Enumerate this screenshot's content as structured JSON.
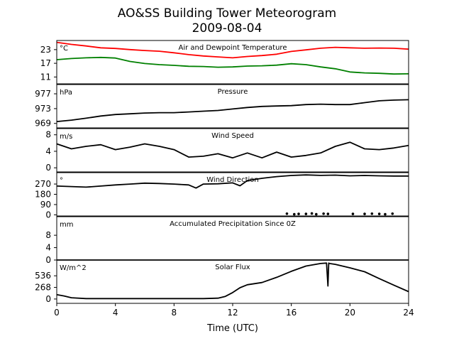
{
  "figure": {
    "title_line1": "AO&SS Building Tower Meteorogram",
    "title_line2": "2009-08-04",
    "xlabel": "Time (UTC)",
    "x_ticks": [
      0,
      4,
      8,
      12,
      16,
      20,
      24
    ],
    "xlim": [
      0,
      24
    ]
  },
  "chart_data": [
    {
      "type": "line",
      "title": "Air and Dewpoint Temperature",
      "unit": "°C",
      "ylim": [
        8,
        27
      ],
      "yticks": [
        11,
        17,
        23
      ],
      "series": [
        {
          "color": "#ff0000",
          "x": [
            0,
            1,
            2,
            3,
            4,
            5,
            6,
            7,
            8,
            9,
            10,
            11,
            12,
            13,
            14,
            15,
            16,
            17,
            18,
            19,
            20,
            21,
            22,
            23,
            24
          ],
          "y": [
            26.2,
            25.3,
            24.6,
            23.8,
            23.5,
            23.0,
            22.6,
            22.3,
            21.6,
            20.8,
            20.2,
            19.8,
            19.4,
            20.0,
            20.4,
            21.0,
            22.2,
            22.9,
            23.6,
            24.0,
            23.8,
            23.6,
            23.7,
            23.6,
            23.2
          ]
        },
        {
          "color": "#008000",
          "x": [
            0,
            1,
            2,
            3,
            4,
            5,
            6,
            7,
            8,
            9,
            10,
            11,
            12,
            13,
            14,
            15,
            16,
            17,
            18,
            19,
            20,
            21,
            22,
            23,
            24
          ],
          "y": [
            18.6,
            19.1,
            19.4,
            19.6,
            19.3,
            17.8,
            16.9,
            16.4,
            16.1,
            15.7,
            15.6,
            15.3,
            15.4,
            15.8,
            15.9,
            16.2,
            16.8,
            16.4,
            15.4,
            14.6,
            13.2,
            12.8,
            12.6,
            12.3,
            12.4
          ]
        }
      ]
    },
    {
      "type": "line",
      "title": "Pressure",
      "unit": "hPa",
      "ylim": [
        967.8,
        979.5
      ],
      "yticks": [
        969,
        973,
        977
      ],
      "series": [
        {
          "color": "#000000",
          "x": [
            0,
            1,
            2,
            3,
            4,
            5,
            6,
            7,
            8,
            9,
            10,
            11,
            12,
            13,
            14,
            15,
            16,
            17,
            18,
            19,
            20,
            21,
            22,
            23,
            24
          ],
          "y": [
            969.5,
            969.9,
            970.4,
            971.0,
            971.4,
            971.6,
            971.8,
            971.9,
            971.9,
            972.1,
            972.3,
            972.5,
            972.9,
            973.3,
            973.6,
            973.7,
            973.8,
            974.1,
            974.2,
            974.1,
            974.1,
            974.6,
            975.1,
            975.3,
            975.4
          ]
        }
      ]
    },
    {
      "type": "line",
      "title": "Wind Speed",
      "unit": "m/s",
      "ylim": [
        -1,
        9.5
      ],
      "yticks": [
        0,
        4,
        8
      ],
      "series": [
        {
          "color": "#000000",
          "x": [
            0,
            1,
            2,
            3,
            4,
            5,
            6,
            7,
            8,
            9,
            10,
            11,
            12,
            13,
            14,
            15,
            16,
            17,
            18,
            19,
            20,
            21,
            22,
            23,
            24
          ],
          "y": [
            5.8,
            4.6,
            5.2,
            5.6,
            4.4,
            5.0,
            5.8,
            5.2,
            4.4,
            2.6,
            2.8,
            3.4,
            2.4,
            3.6,
            2.4,
            3.8,
            2.6,
            3.0,
            3.6,
            5.2,
            6.2,
            4.6,
            4.4,
            4.8,
            5.4
          ]
        }
      ]
    },
    {
      "type": "line",
      "title": "Wind Direction",
      "unit": "°",
      "ylim": [
        -10,
        370
      ],
      "yticks": [
        0,
        90,
        180,
        270
      ],
      "series": [
        {
          "color": "#000000",
          "x": [
            0,
            1,
            2,
            3,
            4,
            5,
            6,
            7,
            8,
            9,
            9.5,
            10,
            11,
            12,
            12.5,
            13,
            14,
            15,
            16,
            17,
            18,
            19,
            20,
            21,
            22,
            23,
            24
          ],
          "y": [
            252,
            248,
            243,
            252,
            262,
            270,
            278,
            275,
            270,
            262,
            235,
            270,
            272,
            280,
            255,
            300,
            320,
            335,
            345,
            350,
            346,
            348,
            342,
            345,
            342,
            340,
            340
          ]
        },
        {
          "color": "#000000",
          "type": "scatter",
          "x": [
            15.7,
            16.2,
            16.5,
            17.0,
            17.4,
            17.7,
            18.2,
            18.5,
            20.2,
            21.0,
            21.5,
            22.0,
            22.4,
            22.9
          ],
          "y": [
            10,
            5,
            8,
            8,
            12,
            5,
            10,
            8,
            8,
            8,
            10,
            8,
            5,
            10
          ]
        }
      ]
    },
    {
      "type": "line",
      "title": "Accumulated Precipitation Since 0Z",
      "unit": "mm",
      "ylim": [
        0,
        14
      ],
      "yticks": [
        0,
        4,
        8
      ],
      "series": [
        {
          "color": "#000000",
          "x": [
            0,
            24
          ],
          "y": [
            0,
            0
          ]
        }
      ]
    },
    {
      "type": "line",
      "title": "Solar Flux",
      "unit": "W/m^2",
      "ylim": [
        -100,
        900
      ],
      "yticks": [
        0,
        268,
        536
      ],
      "series": [
        {
          "color": "#000000",
          "x": [
            0,
            0.5,
            1,
            2,
            4,
            6,
            8,
            10,
            11,
            11.5,
            12,
            12.5,
            13,
            14,
            15,
            16,
            17,
            18,
            18.4,
            18.5,
            18.55,
            18.6,
            19,
            20,
            21,
            22,
            23,
            24
          ],
          "y": [
            100,
            70,
            30,
            10,
            10,
            10,
            10,
            10,
            20,
            60,
            150,
            260,
            330,
            380,
            500,
            640,
            760,
            820,
            830,
            300,
            830,
            820,
            800,
            720,
            630,
            470,
            320,
            170
          ]
        }
      ]
    }
  ]
}
